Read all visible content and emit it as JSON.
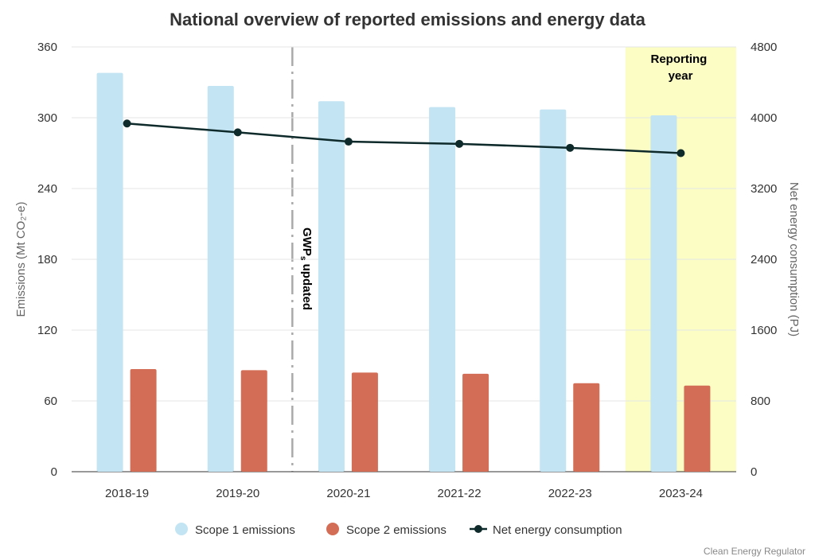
{
  "chart_data": {
    "type": "bar",
    "title": "National overview of reported emissions and energy data",
    "categories": [
      "2018-19",
      "2019-20",
      "2020-21",
      "2021-22",
      "2022-23",
      "2023-24"
    ],
    "series": [
      {
        "name": "Scope 1 emissions",
        "type": "bar",
        "axis": "left",
        "color": "#c2e4f3",
        "values": [
          338,
          327,
          314,
          309,
          307,
          302
        ]
      },
      {
        "name": "Scope 2 emissions",
        "type": "bar",
        "axis": "left",
        "color": "#d46d55",
        "values": [
          87,
          86,
          84,
          83,
          75,
          73
        ]
      },
      {
        "name": "Net energy consumption",
        "type": "line",
        "axis": "right",
        "color": "#0f2a2a",
        "values": [
          3935,
          3835,
          3730,
          3705,
          3660,
          3600
        ]
      }
    ],
    "ylabel": "Emissions (Mt CO₂-e)",
    "y2label": "Net energy consumption (PJ)",
    "ylim": [
      0,
      360
    ],
    "yticks": [
      0,
      60,
      120,
      180,
      240,
      300,
      360
    ],
    "y2lim": [
      0,
      4800
    ],
    "y2ticks": [
      0,
      800,
      1600,
      2400,
      3200,
      4000,
      4800
    ],
    "grid": true,
    "legend": "bottom",
    "annotations": {
      "gwp_line_label_main": "GWP",
      "gwp_line_label_sub": "s",
      "gwp_line_label_rest": " updated",
      "gwp_line_between": [
        "2019-20",
        "2020-21"
      ],
      "reporting_year_line1": "Reporting",
      "reporting_year_line2": "year",
      "reporting_year_category": "2023-24",
      "reporting_year_color": "#fbfdc4"
    },
    "source": "Clean Energy Regulator"
  }
}
